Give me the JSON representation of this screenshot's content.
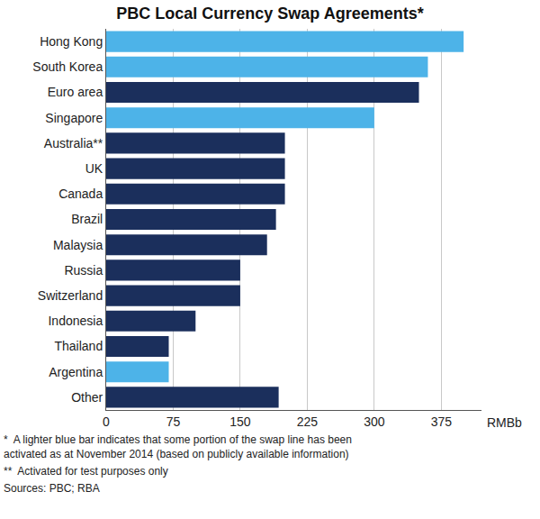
{
  "chart_data": {
    "type": "bar",
    "orientation": "horizontal",
    "title": "PBC Local Currency Swap Agreements*",
    "x_label": "RMBb",
    "categories": [
      "Hong Kong",
      "South Korea",
      "Euro area",
      "Singapore",
      "Australia**",
      "UK",
      "Canada",
      "Brazil",
      "Malaysia",
      "Russia",
      "Switzerland",
      "Indonesia",
      "Thailand",
      "Argentina",
      "Other"
    ],
    "values": [
      400,
      360,
      350,
      300,
      200,
      200,
      200,
      190,
      180,
      150,
      150,
      100,
      70,
      70,
      193
    ],
    "colors": [
      "#4db3e8",
      "#4db3e8",
      "#1b2f5c",
      "#4db3e8",
      "#1b2f5c",
      "#1b2f5c",
      "#1b2f5c",
      "#1b2f5c",
      "#1b2f5c",
      "#1b2f5c",
      "#1b2f5c",
      "#1b2f5c",
      "#1b2f5c",
      "#4db3e8",
      "#1b2f5c"
    ],
    "xlim": [
      0,
      420
    ],
    "xticks": [
      0,
      75,
      150,
      225,
      300,
      375
    ],
    "grid": true,
    "notes": [
      "*  A lighter blue bar indicates that some portion of the swap line has been activated as at November 2014 (based on publicly available information)",
      "**  Activated for test purposes only"
    ],
    "source": "Sources: PBC; RBA"
  }
}
